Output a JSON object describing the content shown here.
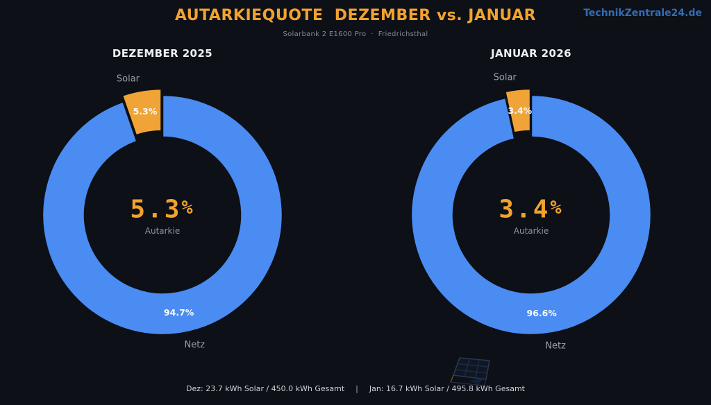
{
  "header": {
    "title": "AUTARKIEQUOTE  DEZEMBER vs. JANUAR",
    "subtitle": "Solarbank 2 E1600 Pro  ·  Friedrichsthal",
    "brand": "TechnikZentrale24.de"
  },
  "colors": {
    "background": "#0d1016",
    "solar_orange": "#f0a437",
    "netz_blue": "#4a8cf2",
    "accent_title_orange": "#f2a32e",
    "brand_blue": "#336cb4",
    "pct_label_white": "#fafbfc",
    "muted_gray": "#9aa1ab",
    "center_sub_gray": "#8d939d"
  },
  "chart_data": [
    {
      "type": "pie",
      "title": "DEZEMBER 2025",
      "labels": [
        "Solar",
        "Netz"
      ],
      "values": [
        5.3,
        94.7
      ],
      "unit": "%",
      "center_value": "5.3",
      "center_unit": "%",
      "center_label": "Autarkie",
      "donut": true,
      "start_angle_deg": 90,
      "counterclockwise": true,
      "exploded_slice": "Solar"
    },
    {
      "type": "pie",
      "title": "JANUAR 2026",
      "labels": [
        "Solar",
        "Netz"
      ],
      "values": [
        3.4,
        96.6
      ],
      "unit": "%",
      "center_value": "3.4",
      "center_unit": "%",
      "center_label": "Autarkie",
      "donut": true,
      "start_angle_deg": 90,
      "counterclockwise": true,
      "exploded_slice": "Solar"
    }
  ],
  "footer": {
    "dez": "Dez: 23.7 kWh Solar / 450.0 kWh Gesamt",
    "separator": "|",
    "jan": "Jan: 16.7 kWh Solar / 495.8 kWh Gesamt"
  }
}
